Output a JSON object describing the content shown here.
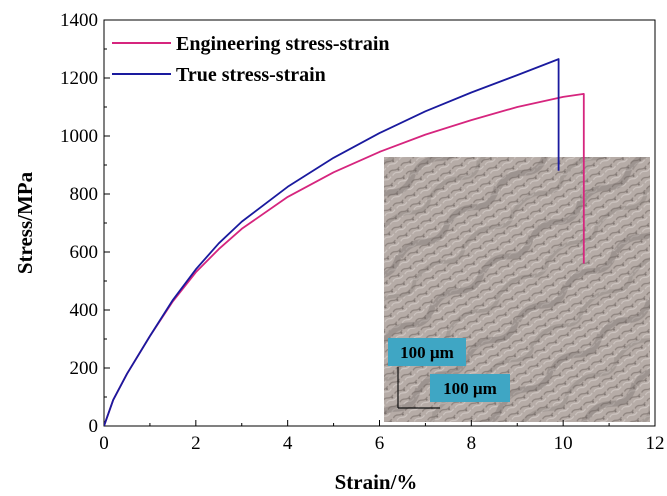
{
  "chart_data": {
    "type": "line",
    "xlabel": "Strain/%",
    "ylabel": "Stress/MPa",
    "xlim": [
      0,
      12
    ],
    "ylim": [
      0,
      1400
    ],
    "xticks": [
      0,
      2,
      4,
      6,
      8,
      10,
      12
    ],
    "yticks": [
      0,
      200,
      400,
      600,
      800,
      1000,
      1200,
      1400
    ],
    "grid": false,
    "legend_position": "top-left",
    "series": [
      {
        "name": "Engineering stress-strain",
        "color": "#d6257e",
        "x": [
          0,
          0.2,
          0.5,
          1.0,
          1.5,
          2.0,
          2.5,
          3.0,
          4.0,
          5.0,
          6.0,
          7.0,
          8.0,
          9.0,
          10.0,
          10.45,
          10.45
        ],
        "y": [
          0,
          90,
          180,
          310,
          430,
          530,
          610,
          680,
          790,
          875,
          945,
          1005,
          1055,
          1100,
          1135,
          1145,
          560
        ]
      },
      {
        "name": "True stress-strain",
        "color": "#1a1a9e",
        "x": [
          0,
          0.2,
          0.5,
          1.0,
          1.5,
          2.0,
          2.5,
          3.0,
          4.0,
          5.0,
          6.0,
          7.0,
          8.0,
          9.0,
          9.9,
          9.9
        ],
        "y": [
          0,
          90,
          180,
          310,
          435,
          540,
          630,
          705,
          825,
          925,
          1010,
          1085,
          1150,
          1210,
          1265,
          880
        ]
      }
    ]
  },
  "inset": {
    "description_icon": "microstructure-micrograph",
    "scale_bar_vertical_label": "100 µm",
    "scale_bar_horizontal_label": "100 µm",
    "label_box_color": "#3fa6c4"
  }
}
